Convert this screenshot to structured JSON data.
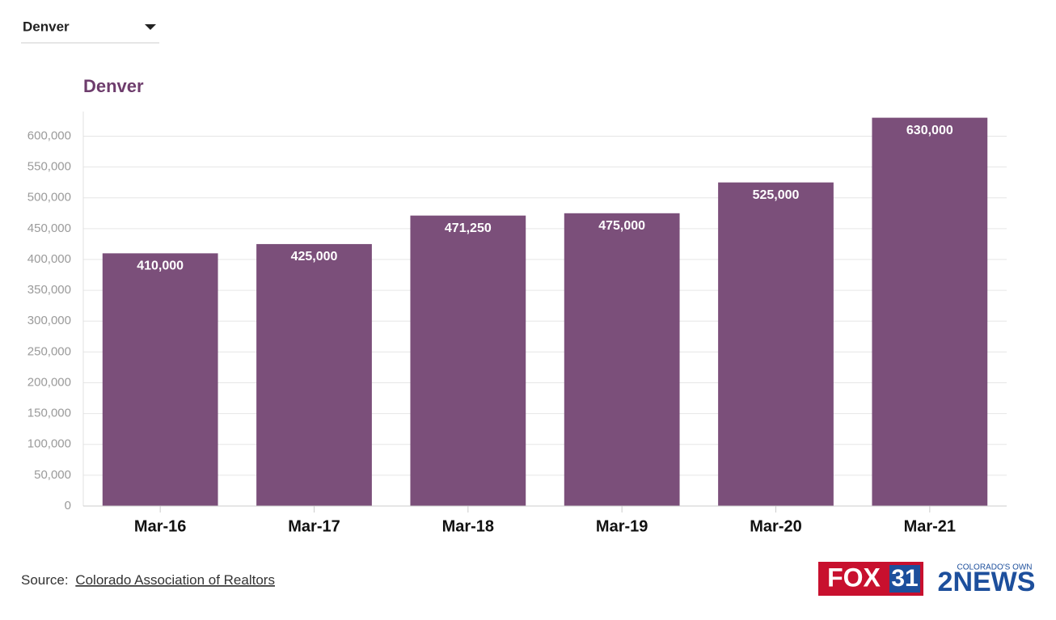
{
  "dropdown": {
    "selected": "Denver"
  },
  "chart_data": {
    "type": "bar",
    "title": "Denver",
    "categories": [
      "Mar-16",
      "Mar-17",
      "Mar-18",
      "Mar-19",
      "Mar-20",
      "Mar-21"
    ],
    "values": [
      410000,
      425000,
      471250,
      475000,
      525000,
      630000
    ],
    "value_labels": [
      "410,000",
      "425,000",
      "471,250",
      "475,000",
      "525,000",
      "630,000"
    ],
    "color": "#7b4f7a",
    "ylim": [
      0,
      640000
    ],
    "yticks": [
      0,
      {
        "value": 50000,
        "label": "50,000"
      },
      {
        "value": 100000,
        "label": "100,000"
      },
      {
        "value": 150000,
        "label": "150,000"
      },
      {
        "value": 200000,
        "label": "200,000"
      },
      {
        "value": 250000,
        "label": "250,000"
      },
      {
        "value": 300000,
        "label": "300,000"
      },
      {
        "value": 350000,
        "label": "350,000"
      },
      {
        "value": 400000,
        "label": "400,000"
      },
      {
        "value": 450000,
        "label": "450,000"
      },
      {
        "value": 500000,
        "label": "500,000"
      },
      {
        "value": 550000,
        "label": "550,000"
      },
      {
        "value": 600000,
        "label": "600,000"
      }
    ],
    "grid": true
  },
  "source": {
    "prefix": "Source:",
    "link": "Colorado Association of Realtors"
  },
  "logos": {
    "fox": "FOX",
    "fox_number": "31",
    "news_tag": "COLORADO'S OWN",
    "news": "2NEWS"
  }
}
